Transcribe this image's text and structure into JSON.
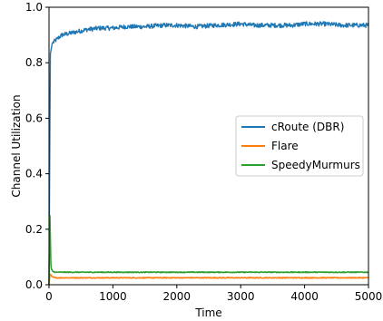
{
  "chart_data": {
    "type": "line",
    "title": "",
    "xlabel": "Time",
    "ylabel": "Channel Utilization",
    "xlim": [
      0,
      5000
    ],
    "ylim": [
      0,
      1.0
    ],
    "xticks": [
      0,
      1000,
      2000,
      3000,
      4000,
      5000
    ],
    "yticks": [
      0.0,
      0.2,
      0.4,
      0.6,
      0.8,
      1.0
    ],
    "grid": false,
    "legend_position": "center-right",
    "series": [
      {
        "name": "cRoute (DBR)",
        "color": "#1f77b4",
        "x": [
          0,
          20,
          50,
          100,
          200,
          300,
          400,
          500,
          600,
          800,
          1000,
          1200,
          1500,
          1800,
          2000,
          2300,
          2600,
          3000,
          3200,
          3500,
          3800,
          4000,
          4300,
          4600,
          5000
        ],
        "y": [
          0.0,
          0.83,
          0.87,
          0.88,
          0.9,
          0.905,
          0.91,
          0.915,
          0.92,
          0.925,
          0.925,
          0.93,
          0.93,
          0.935,
          0.935,
          0.93,
          0.935,
          0.94,
          0.935,
          0.935,
          0.935,
          0.94,
          0.94,
          0.935,
          0.935
        ]
      },
      {
        "name": "Flare",
        "color": "#ff7f0e",
        "x": [
          0,
          15,
          50,
          100,
          500,
          1000,
          2000,
          3000,
          4000,
          5000
        ],
        "y": [
          0.0,
          0.04,
          0.028,
          0.025,
          0.025,
          0.025,
          0.025,
          0.025,
          0.025,
          0.025
        ]
      },
      {
        "name": "SpeedyMurmurs",
        "color": "#2ca02c",
        "x": [
          0,
          10,
          30,
          60,
          100,
          500,
          1000,
          2000,
          3000,
          4000,
          5000
        ],
        "y": [
          0.0,
          0.3,
          0.06,
          0.048,
          0.045,
          0.045,
          0.045,
          0.045,
          0.045,
          0.045,
          0.045
        ]
      }
    ]
  }
}
